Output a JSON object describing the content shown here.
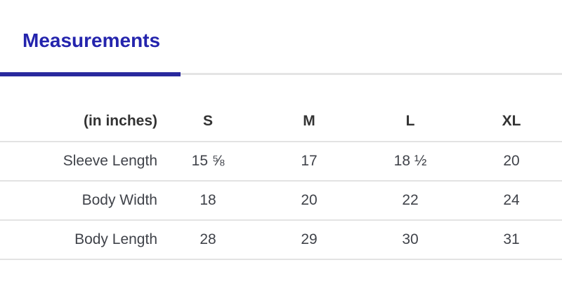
{
  "tabs": {
    "measurements_tab_label": "Measurements",
    "accent_text_color": "#2424ad",
    "active_indicator_color": "#29299e",
    "inactive_line_color": "#e4e4e4"
  },
  "size_chart": {
    "unit_header": "(in inches)",
    "columns": [
      "S",
      "M",
      "L",
      "XL"
    ],
    "rows": [
      {
        "label": "Sleeve Length",
        "values": [
          "15 ⅝",
          "17",
          "18 ½",
          "20"
        ]
      },
      {
        "label": "Body Width",
        "values": [
          "18",
          "20",
          "22",
          "24"
        ]
      },
      {
        "label": "Body Length",
        "values": [
          "28",
          "29",
          "30",
          "31"
        ]
      }
    ]
  }
}
